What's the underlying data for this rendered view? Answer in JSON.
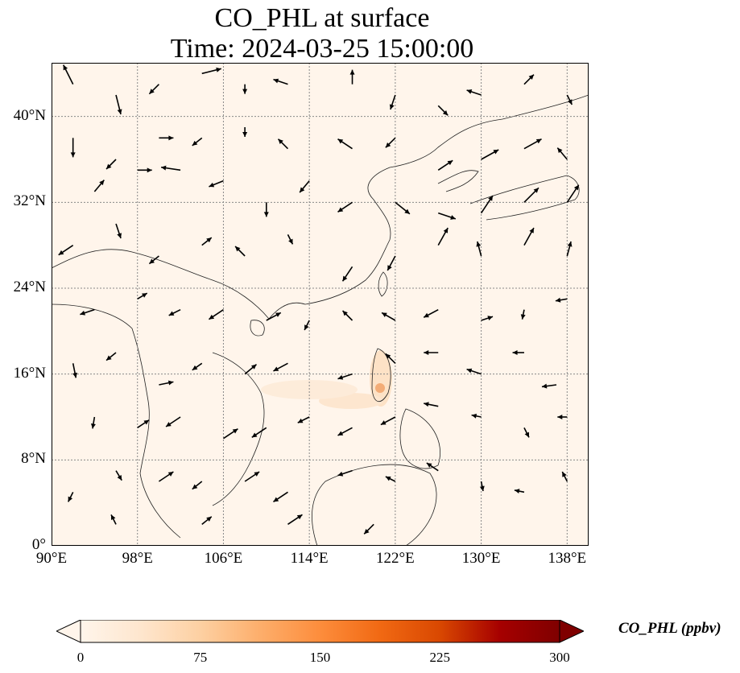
{
  "title": {
    "line1": "CO_PHL at surface",
    "line2": "Time: 2024-03-25 15:00:00"
  },
  "map": {
    "lon_range": [
      90,
      140
    ],
    "lat_range": [
      0,
      45
    ],
    "lon_ticks": [
      {
        "value": 90,
        "label": "90°E"
      },
      {
        "value": 98,
        "label": "98°E"
      },
      {
        "value": 106,
        "label": "106°E"
      },
      {
        "value": 114,
        "label": "114°E"
      },
      {
        "value": 122,
        "label": "122°E"
      },
      {
        "value": 130,
        "label": "130°E"
      },
      {
        "value": 138,
        "label": "138°E"
      }
    ],
    "lat_ticks": [
      {
        "value": 0,
        "label": "0°"
      },
      {
        "value": 8,
        "label": "8°N"
      },
      {
        "value": 16,
        "label": "16°N"
      },
      {
        "value": 24,
        "label": "24°N"
      },
      {
        "value": 32,
        "label": "32°N"
      },
      {
        "value": 40,
        "label": "40°N"
      }
    ],
    "background_color": "#fff5eb",
    "gridlines": true
  },
  "colorbar": {
    "label": "CO_PHL (ppbv)",
    "min": 0,
    "max": 300,
    "ticks": [
      "0",
      "75",
      "150",
      "225",
      "300"
    ],
    "colors": [
      "#fff5eb",
      "#fee6ce",
      "#fdd0a2",
      "#fdae6b",
      "#fd8d3c",
      "#f16913",
      "#d94801",
      "#a60000",
      "#7f0000"
    ],
    "extend": "both"
  },
  "wind_vectors": [
    {
      "lon": 92,
      "lat": 43,
      "u": -1,
      "v": 2
    },
    {
      "lon": 96,
      "lat": 42,
      "u": 0.5,
      "v": -2
    },
    {
      "lon": 100,
      "lat": 43,
      "u": -1,
      "v": -1
    },
    {
      "lon": 104,
      "lat": 44,
      "u": 2,
      "v": 0.5
    },
    {
      "lon": 108,
      "lat": 43,
      "u": 0,
      "v": -1
    },
    {
      "lon": 112,
      "lat": 43,
      "u": -1.5,
      "v": 0.5
    },
    {
      "lon": 92,
      "lat": 38,
      "u": 0,
      "v": -2
    },
    {
      "lon": 96,
      "lat": 36,
      "u": -1,
      "v": -1
    },
    {
      "lon": 100,
      "lat": 38,
      "u": 1.5,
      "v": 0
    },
    {
      "lon": 104,
      "lat": 38,
      "u": -1,
      "v": -0.8
    },
    {
      "lon": 108,
      "lat": 39,
      "u": 0,
      "v": -1
    },
    {
      "lon": 112,
      "lat": 37,
      "u": -1,
      "v": 1
    },
    {
      "lon": 94,
      "lat": 33,
      "u": 1,
      "v": 1.2
    },
    {
      "lon": 98,
      "lat": 35,
      "u": 1.5,
      "v": 0
    },
    {
      "lon": 102,
      "lat": 35,
      "u": -2,
      "v": 0.3
    },
    {
      "lon": 106,
      "lat": 34,
      "u": -1.5,
      "v": -0.6
    },
    {
      "lon": 110,
      "lat": 32,
      "u": 0,
      "v": -1.5
    },
    {
      "lon": 114,
      "lat": 34,
      "u": -1,
      "v": -1.2
    },
    {
      "lon": 92,
      "lat": 28,
      "u": -1.5,
      "v": -1
    },
    {
      "lon": 96,
      "lat": 30,
      "u": 0.5,
      "v": -1.5
    },
    {
      "lon": 100,
      "lat": 27,
      "u": -1,
      "v": -0.8
    },
    {
      "lon": 104,
      "lat": 28,
      "u": 1,
      "v": 0.8
    },
    {
      "lon": 108,
      "lat": 27,
      "u": -1,
      "v": 1
    },
    {
      "lon": 112,
      "lat": 29,
      "u": 0.5,
      "v": -1
    },
    {
      "lon": 94,
      "lat": 22,
      "u": -1.5,
      "v": -0.5
    },
    {
      "lon": 98,
      "lat": 23,
      "u": 1,
      "v": 0.6
    },
    {
      "lon": 102,
      "lat": 22,
      "u": -1.2,
      "v": -0.6
    },
    {
      "lon": 106,
      "lat": 22,
      "u": -1.5,
      "v": -1
    },
    {
      "lon": 110,
      "lat": 21,
      "u": 1.5,
      "v": 0.8
    },
    {
      "lon": 114,
      "lat": 21,
      "u": -0.5,
      "v": -1
    },
    {
      "lon": 92,
      "lat": 17,
      "u": 0.3,
      "v": -1.5
    },
    {
      "lon": 96,
      "lat": 18,
      "u": -1,
      "v": -0.8
    },
    {
      "lon": 100,
      "lat": 15,
      "u": 1.5,
      "v": 0.3
    },
    {
      "lon": 104,
      "lat": 17,
      "u": -1,
      "v": -0.7
    },
    {
      "lon": 108,
      "lat": 16,
      "u": 1.2,
      "v": 1
    },
    {
      "lon": 112,
      "lat": 17,
      "u": -1.5,
      "v": -0.8
    },
    {
      "lon": 94,
      "lat": 12,
      "u": -0.2,
      "v": -1.2
    },
    {
      "lon": 98,
      "lat": 11,
      "u": 1.2,
      "v": 0.8
    },
    {
      "lon": 102,
      "lat": 12,
      "u": -1.5,
      "v": -1
    },
    {
      "lon": 106,
      "lat": 10,
      "u": 1.5,
      "v": 1
    },
    {
      "lon": 110,
      "lat": 11,
      "u": -1.5,
      "v": -1
    },
    {
      "lon": 114,
      "lat": 12,
      "u": -1.2,
      "v": -0.6
    },
    {
      "lon": 92,
      "lat": 5,
      "u": -0.5,
      "v": -1
    },
    {
      "lon": 96,
      "lat": 7,
      "u": 0.6,
      "v": -1
    },
    {
      "lon": 100,
      "lat": 6,
      "u": 1.5,
      "v": 1
    },
    {
      "lon": 104,
      "lat": 6,
      "u": -1,
      "v": -0.8
    },
    {
      "lon": 108,
      "lat": 6,
      "u": 1.5,
      "v": 1
    },
    {
      "lon": 112,
      "lat": 5,
      "u": -1.5,
      "v": -1
    },
    {
      "lon": 96,
      "lat": 2,
      "u": -0.5,
      "v": 1
    },
    {
      "lon": 104,
      "lat": 2,
      "u": 1,
      "v": 0.8
    },
    {
      "lon": 112,
      "lat": 2,
      "u": 1.5,
      "v": 1
    },
    {
      "lon": 120,
      "lat": 2,
      "u": -1,
      "v": -1
    },
    {
      "lon": 118,
      "lat": 43,
      "u": 0,
      "v": 1.5
    },
    {
      "lon": 122,
      "lat": 42,
      "u": -0.5,
      "v": -1.5
    },
    {
      "lon": 126,
      "lat": 41,
      "u": 1,
      "v": -1
    },
    {
      "lon": 130,
      "lat": 42,
      "u": -1.5,
      "v": 0.5
    },
    {
      "lon": 134,
      "lat": 43,
      "u": 1,
      "v": 1
    },
    {
      "lon": 138,
      "lat": 42,
      "u": 0.5,
      "v": -1
    },
    {
      "lon": 118,
      "lat": 37,
      "u": -1.5,
      "v": 1
    },
    {
      "lon": 122,
      "lat": 38,
      "u": -1,
      "v": -1
    },
    {
      "lon": 126,
      "lat": 35,
      "u": 1.5,
      "v": 1
    },
    {
      "lon": 130,
      "lat": 36,
      "u": 1.8,
      "v": 1
    },
    {
      "lon": 134,
      "lat": 37,
      "u": 1.8,
      "v": 1
    },
    {
      "lon": 138,
      "lat": 36,
      "u": -1,
      "v": 1.2
    },
    {
      "lon": 118,
      "lat": 32,
      "u": -1.5,
      "v": -1
    },
    {
      "lon": 122,
      "lat": 32,
      "u": 1.5,
      "v": -1.2
    },
    {
      "lon": 126,
      "lat": 31,
      "u": 1.8,
      "v": -0.6
    },
    {
      "lon": 130,
      "lat": 31,
      "u": 1.2,
      "v": 1.8
    },
    {
      "lon": 134,
      "lat": 32,
      "u": 1.5,
      "v": 1.5
    },
    {
      "lon": 138,
      "lat": 32,
      "u": 1.2,
      "v": 1.8
    },
    {
      "lon": 118,
      "lat": 26,
      "u": -1,
      "v": -1.5
    },
    {
      "lon": 122,
      "lat": 27,
      "u": -0.8,
      "v": -1.5
    },
    {
      "lon": 126,
      "lat": 28,
      "u": 1,
      "v": 1.8
    },
    {
      "lon": 130,
      "lat": 27,
      "u": -0.4,
      "v": 1.5
    },
    {
      "lon": 134,
      "lat": 28,
      "u": 1,
      "v": 1.8
    },
    {
      "lon": 138,
      "lat": 27,
      "u": 0.4,
      "v": 1.5
    },
    {
      "lon": 118,
      "lat": 21,
      "u": -1,
      "v": 1
    },
    {
      "lon": 122,
      "lat": 21,
      "u": -1.4,
      "v": 0.8
    },
    {
      "lon": 126,
      "lat": 22,
      "u": -1.5,
      "v": -0.8
    },
    {
      "lon": 130,
      "lat": 21,
      "u": 1.2,
      "v": 0.4
    },
    {
      "lon": 134,
      "lat": 22,
      "u": -0.2,
      "v": -1
    },
    {
      "lon": 138,
      "lat": 23,
      "u": -1.2,
      "v": -0.2
    },
    {
      "lon": 118,
      "lat": 16,
      "u": -1.5,
      "v": -0.5
    },
    {
      "lon": 122,
      "lat": 17,
      "u": -1,
      "v": 1
    },
    {
      "lon": 126,
      "lat": 18,
      "u": -1.5,
      "v": 0
    },
    {
      "lon": 130,
      "lat": 16,
      "u": -1.5,
      "v": 0.5
    },
    {
      "lon": 134,
      "lat": 18,
      "u": -1.2,
      "v": 0
    },
    {
      "lon": 137,
      "lat": 15,
      "u": -1.5,
      "v": -0.2
    },
    {
      "lon": 118,
      "lat": 11,
      "u": -1.5,
      "v": -0.8
    },
    {
      "lon": 122,
      "lat": 12,
      "u": -1.5,
      "v": -0.8
    },
    {
      "lon": 126,
      "lat": 13,
      "u": -1.5,
      "v": 0.3
    },
    {
      "lon": 130,
      "lat": 12,
      "u": -1,
      "v": 0.2
    },
    {
      "lon": 134,
      "lat": 11,
      "u": 0.5,
      "v": -1
    },
    {
      "lon": 138,
      "lat": 12,
      "u": -1,
      "v": 0
    },
    {
      "lon": 118,
      "lat": 7,
      "u": -1.5,
      "v": -0.5
    },
    {
      "lon": 122,
      "lat": 6,
      "u": -1,
      "v": 0.5
    },
    {
      "lon": 126,
      "lat": 7,
      "u": -1.2,
      "v": 0.8
    },
    {
      "lon": 130,
      "lat": 6,
      "u": 0.2,
      "v": -1
    },
    {
      "lon": 134,
      "lat": 5,
      "u": -1,
      "v": 0.2
    },
    {
      "lon": 138,
      "lat": 6,
      "u": -0.5,
      "v": 1
    }
  ]
}
